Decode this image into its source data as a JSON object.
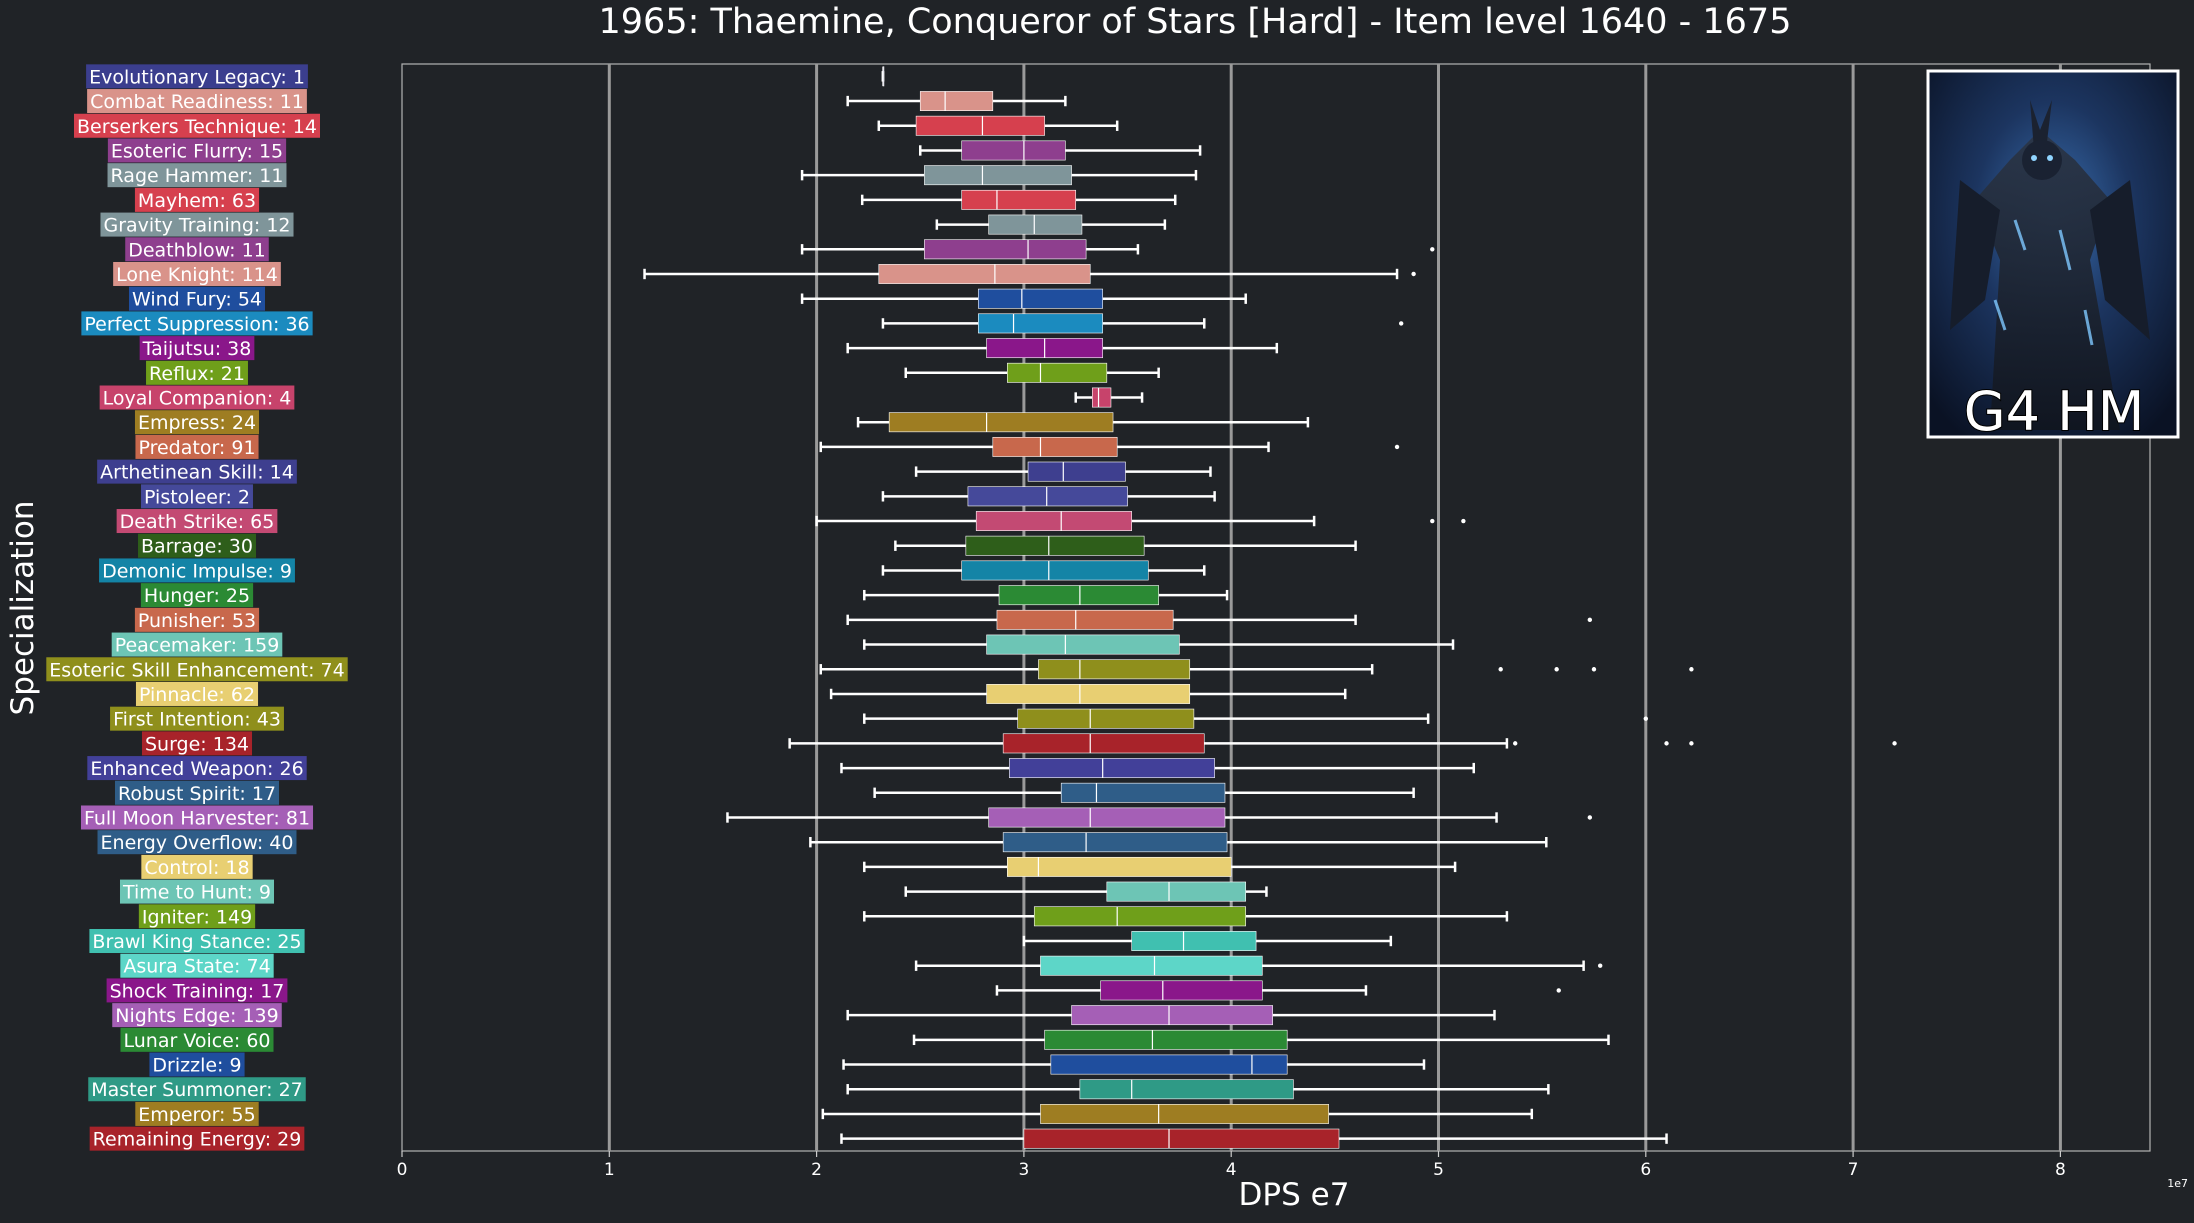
{
  "chart_data": {
    "type": "box",
    "title": "1965: Thaemine, Conqueror of Stars [Hard] - Item level 1640 - 1675",
    "xlabel": "DPS e7",
    "ylabel": "Specialization",
    "x_exponent_label": "1e7",
    "xlim": [
      0,
      8.6
    ],
    "x_ticks": [
      0,
      1,
      2,
      3,
      4,
      5,
      6,
      7,
      8
    ],
    "grid": "vertical",
    "background": "#202327",
    "inset_image": {
      "caption": "G4 HM"
    },
    "series": [
      {
        "label": "Evolutionary Legacy: 1",
        "color": "#3b3e8e",
        "whislo": 2.32,
        "q1": 2.32,
        "med": 2.32,
        "q3": 2.32,
        "whishi": 2.32,
        "fliers": []
      },
      {
        "label": "Combat Readiness: 11",
        "color": "#d9938a",
        "whislo": 2.15,
        "q1": 2.5,
        "med": 2.62,
        "q3": 2.85,
        "whishi": 3.2,
        "fliers": []
      },
      {
        "label": "Berserkers Technique: 14",
        "color": "#d6404e",
        "whislo": 2.3,
        "q1": 2.48,
        "med": 2.8,
        "q3": 3.1,
        "whishi": 3.45,
        "fliers": []
      },
      {
        "label": "Esoteric Flurry: 15",
        "color": "#8e3f8e",
        "whislo": 2.5,
        "q1": 2.7,
        "med": 3.0,
        "q3": 3.2,
        "whishi": 3.85,
        "fliers": []
      },
      {
        "label": "Rage Hammer: 11",
        "color": "#7f959a",
        "whislo": 1.93,
        "q1": 2.52,
        "med": 2.8,
        "q3": 3.23,
        "whishi": 3.83,
        "fliers": []
      },
      {
        "label": "Mayhem: 63",
        "color": "#d6404e",
        "whislo": 2.22,
        "q1": 2.7,
        "med": 2.87,
        "q3": 3.25,
        "whishi": 3.73,
        "fliers": []
      },
      {
        "label": "Gravity Training: 12",
        "color": "#7f959a",
        "whislo": 2.58,
        "q1": 2.83,
        "med": 3.05,
        "q3": 3.28,
        "whishi": 3.68,
        "fliers": []
      },
      {
        "label": "Deathblow: 11",
        "color": "#8e3f8e",
        "whislo": 1.93,
        "q1": 2.52,
        "med": 3.02,
        "q3": 3.3,
        "whishi": 3.55,
        "fliers": [
          4.97
        ]
      },
      {
        "label": "Lone Knight: 114",
        "color": "#d9938a",
        "whislo": 1.17,
        "q1": 2.3,
        "med": 2.86,
        "q3": 3.32,
        "whishi": 4.8,
        "fliers": [
          4.88
        ]
      },
      {
        "label": "Wind Fury: 54",
        "color": "#1f4e9e",
        "whislo": 1.93,
        "q1": 2.78,
        "med": 2.99,
        "q3": 3.38,
        "whishi": 4.07,
        "fliers": []
      },
      {
        "label": "Perfect Suppression: 36",
        "color": "#1b8bbf",
        "whislo": 2.32,
        "q1": 2.78,
        "med": 2.95,
        "q3": 3.38,
        "whishi": 3.87,
        "fliers": [
          4.82
        ]
      },
      {
        "label": "Taijutsu: 38",
        "color": "#8a178a",
        "whislo": 2.15,
        "q1": 2.82,
        "med": 3.1,
        "q3": 3.38,
        "whishi": 4.22,
        "fliers": []
      },
      {
        "label": "Reflux: 21",
        "color": "#6f9f1a",
        "whislo": 2.43,
        "q1": 2.92,
        "med": 3.08,
        "q3": 3.4,
        "whishi": 3.65,
        "fliers": []
      },
      {
        "label": "Loyal Companion: 4",
        "color": "#c7436b",
        "whislo": 3.25,
        "q1": 3.33,
        "med": 3.36,
        "q3": 3.42,
        "whishi": 3.57,
        "fliers": []
      },
      {
        "label": "Empress: 24",
        "color": "#9e7d22",
        "whislo": 2.2,
        "q1": 2.35,
        "med": 2.82,
        "q3": 3.43,
        "whishi": 4.37,
        "fliers": []
      },
      {
        "label": "Predator: 91",
        "color": "#c8684c",
        "whislo": 2.02,
        "q1": 2.85,
        "med": 3.08,
        "q3": 3.45,
        "whishi": 4.18,
        "fliers": [
          4.8
        ]
      },
      {
        "label": "Arthetinean Skill: 14",
        "color": "#3e3f8f",
        "whislo": 2.48,
        "q1": 3.02,
        "med": 3.19,
        "q3": 3.49,
        "whishi": 3.9,
        "fliers": []
      },
      {
        "label": "Pistoleer: 2",
        "color": "#45499a",
        "whislo": 2.32,
        "q1": 2.73,
        "med": 3.11,
        "q3": 3.5,
        "whishi": 3.92,
        "fliers": []
      },
      {
        "label": "Death Strike: 65",
        "color": "#c34a73",
        "whislo": 2.0,
        "q1": 2.77,
        "med": 3.18,
        "q3": 3.52,
        "whishi": 4.4,
        "fliers": [
          4.97,
          5.12
        ]
      },
      {
        "label": "Barrage: 30",
        "color": "#2e5e1a",
        "whislo": 2.38,
        "q1": 2.72,
        "med": 3.12,
        "q3": 3.58,
        "whishi": 4.6,
        "fliers": []
      },
      {
        "label": "Demonic Impulse: 9",
        "color": "#1484a6",
        "whislo": 2.32,
        "q1": 2.7,
        "med": 3.12,
        "q3": 3.6,
        "whishi": 3.87,
        "fliers": []
      },
      {
        "label": "Hunger: 25",
        "color": "#2b8a34",
        "whislo": 2.23,
        "q1": 2.88,
        "med": 3.27,
        "q3": 3.65,
        "whishi": 3.98,
        "fliers": []
      },
      {
        "label": "Punisher: 53",
        "color": "#c8684c",
        "whislo": 2.15,
        "q1": 2.87,
        "med": 3.25,
        "q3": 3.72,
        "whishi": 4.6,
        "fliers": [
          5.73
        ]
      },
      {
        "label": "Peacemaker: 159",
        "color": "#6dc5b5",
        "whislo": 2.23,
        "q1": 2.82,
        "med": 3.2,
        "q3": 3.75,
        "whishi": 5.07,
        "fliers": []
      },
      {
        "label": "Esoteric Skill Enhancement: 74",
        "color": "#8f8f1c",
        "whislo": 2.02,
        "q1": 3.07,
        "med": 3.27,
        "q3": 3.8,
        "whishi": 4.68,
        "fliers": [
          5.3,
          5.57,
          5.75,
          6.22
        ]
      },
      {
        "label": "Pinnacle: 62",
        "color": "#e8cf72",
        "whislo": 2.07,
        "q1": 2.82,
        "med": 3.27,
        "q3": 3.8,
        "whishi": 4.55,
        "fliers": []
      },
      {
        "label": "First Intention: 43",
        "color": "#8f8f1c",
        "whislo": 2.23,
        "q1": 2.97,
        "med": 3.32,
        "q3": 3.82,
        "whishi": 4.95,
        "fliers": [
          6.0
        ]
      },
      {
        "label": "Surge: 134",
        "color": "#a8232a",
        "whislo": 1.87,
        "q1": 2.9,
        "med": 3.32,
        "q3": 3.87,
        "whishi": 5.33,
        "fliers": [
          5.37,
          6.1,
          6.22,
          7.2
        ]
      },
      {
        "label": "Enhanced Weapon: 26",
        "color": "#424099",
        "whislo": 2.12,
        "q1": 2.93,
        "med": 3.38,
        "q3": 3.92,
        "whishi": 5.17,
        "fliers": []
      },
      {
        "label": "Robust Spirit: 17",
        "color": "#2f5d88",
        "whislo": 2.28,
        "q1": 3.18,
        "med": 3.35,
        "q3": 3.97,
        "whishi": 4.88,
        "fliers": []
      },
      {
        "label": "Full Moon Harvester: 81",
        "color": "#a55fb6",
        "whislo": 1.57,
        "q1": 2.83,
        "med": 3.32,
        "q3": 3.97,
        "whishi": 5.28,
        "fliers": [
          5.73
        ]
      },
      {
        "label": "Energy Overflow: 40",
        "color": "#2f5d88",
        "whislo": 1.97,
        "q1": 2.9,
        "med": 3.3,
        "q3": 3.98,
        "whishi": 5.52,
        "fliers": []
      },
      {
        "label": "Control: 18",
        "color": "#e8cf72",
        "whislo": 2.23,
        "q1": 2.92,
        "med": 3.07,
        "q3": 4.0,
        "whishi": 5.08,
        "fliers": []
      },
      {
        "label": "Time to Hunt: 9",
        "color": "#6dc5b5",
        "whislo": 2.43,
        "q1": 3.4,
        "med": 3.7,
        "q3": 4.07,
        "whishi": 4.17,
        "fliers": []
      },
      {
        "label": "Igniter: 149",
        "color": "#6f9f1a",
        "whislo": 2.23,
        "q1": 3.05,
        "med": 3.45,
        "q3": 4.07,
        "whishi": 5.33,
        "fliers": []
      },
      {
        "label": "Brawl King Stance: 25",
        "color": "#40c0b0",
        "whislo": 3.0,
        "q1": 3.52,
        "med": 3.77,
        "q3": 4.12,
        "whishi": 4.77,
        "fliers": []
      },
      {
        "label": "Asura State: 74",
        "color": "#5dd6c8",
        "whislo": 2.48,
        "q1": 3.08,
        "med": 3.63,
        "q3": 4.15,
        "whishi": 5.7,
        "fliers": [
          5.78
        ]
      },
      {
        "label": "Shock Training: 17",
        "color": "#8a178a",
        "whislo": 2.87,
        "q1": 3.37,
        "med": 3.67,
        "q3": 4.15,
        "whishi": 4.65,
        "fliers": [
          5.58
        ]
      },
      {
        "label": "Nights Edge: 139",
        "color": "#a55fb6",
        "whislo": 2.15,
        "q1": 3.23,
        "med": 3.7,
        "q3": 4.2,
        "whishi": 5.27,
        "fliers": []
      },
      {
        "label": "Lunar Voice: 60",
        "color": "#2b8a34",
        "whislo": 2.47,
        "q1": 3.1,
        "med": 3.62,
        "q3": 4.27,
        "whishi": 5.82,
        "fliers": []
      },
      {
        "label": "Drizzle: 9",
        "color": "#1f4e9e",
        "whislo": 2.13,
        "q1": 3.13,
        "med": 4.1,
        "q3": 4.27,
        "whishi": 4.93,
        "fliers": []
      },
      {
        "label": "Master Summoner: 27",
        "color": "#2f9a86",
        "whislo": 2.15,
        "q1": 3.27,
        "med": 3.52,
        "q3": 4.3,
        "whishi": 5.53,
        "fliers": []
      },
      {
        "label": "Emperor: 55",
        "color": "#9e7d22",
        "whislo": 2.03,
        "q1": 3.08,
        "med": 3.65,
        "q3": 4.47,
        "whishi": 5.45,
        "fliers": []
      },
      {
        "label": "Remaining Energy: 29",
        "color": "#a8232a",
        "whislo": 2.12,
        "q1": 3.0,
        "med": 3.7,
        "q3": 4.52,
        "whishi": 6.1,
        "fliers": []
      }
    ]
  }
}
